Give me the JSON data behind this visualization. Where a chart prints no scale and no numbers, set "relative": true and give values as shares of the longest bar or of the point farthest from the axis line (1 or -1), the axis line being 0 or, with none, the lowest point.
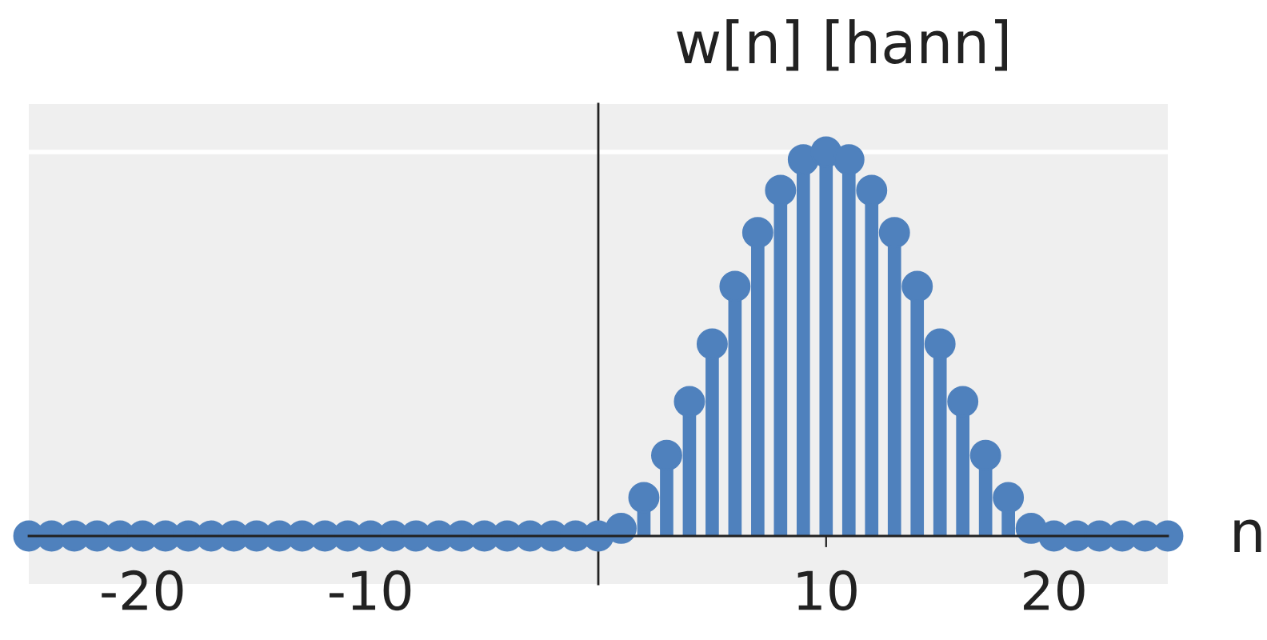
{
  "chart_data": {
    "type": "lollipop",
    "title": "w[n] [hann]",
    "xlabel": "n",
    "relative": true,
    "x": [
      -25,
      -24,
      -23,
      -22,
      -21,
      -20,
      -19,
      -18,
      -17,
      -16,
      -15,
      -14,
      -13,
      -12,
      -11,
      -10,
      -9,
      -8,
      -7,
      -6,
      -5,
      -4,
      -3,
      -2,
      -1,
      0,
      1,
      2,
      3,
      4,
      5,
      6,
      7,
      8,
      9,
      10,
      11,
      12,
      13,
      14,
      15,
      16,
      17,
      18,
      19,
      20,
      21,
      22,
      23,
      24,
      25
    ],
    "values": [
      0,
      0,
      0,
      0,
      0,
      0,
      0,
      0,
      0,
      0,
      0,
      0,
      0,
      0,
      0,
      0,
      0,
      0,
      0,
      0,
      0,
      0,
      0,
      0,
      0,
      0,
      0.02,
      0.1,
      0.21,
      0.35,
      0.5,
      0.65,
      0.79,
      0.9,
      0.98,
      1,
      0.98,
      0.9,
      0.79,
      0.65,
      0.5,
      0.35,
      0.21,
      0.1,
      0.02,
      0,
      0,
      0,
      0,
      0,
      0
    ],
    "color": "#4f81bd",
    "marker": "circle",
    "xlim": [
      -25,
      25
    ],
    "xticks": [
      -20,
      -10,
      10,
      20
    ],
    "grid": "y"
  }
}
